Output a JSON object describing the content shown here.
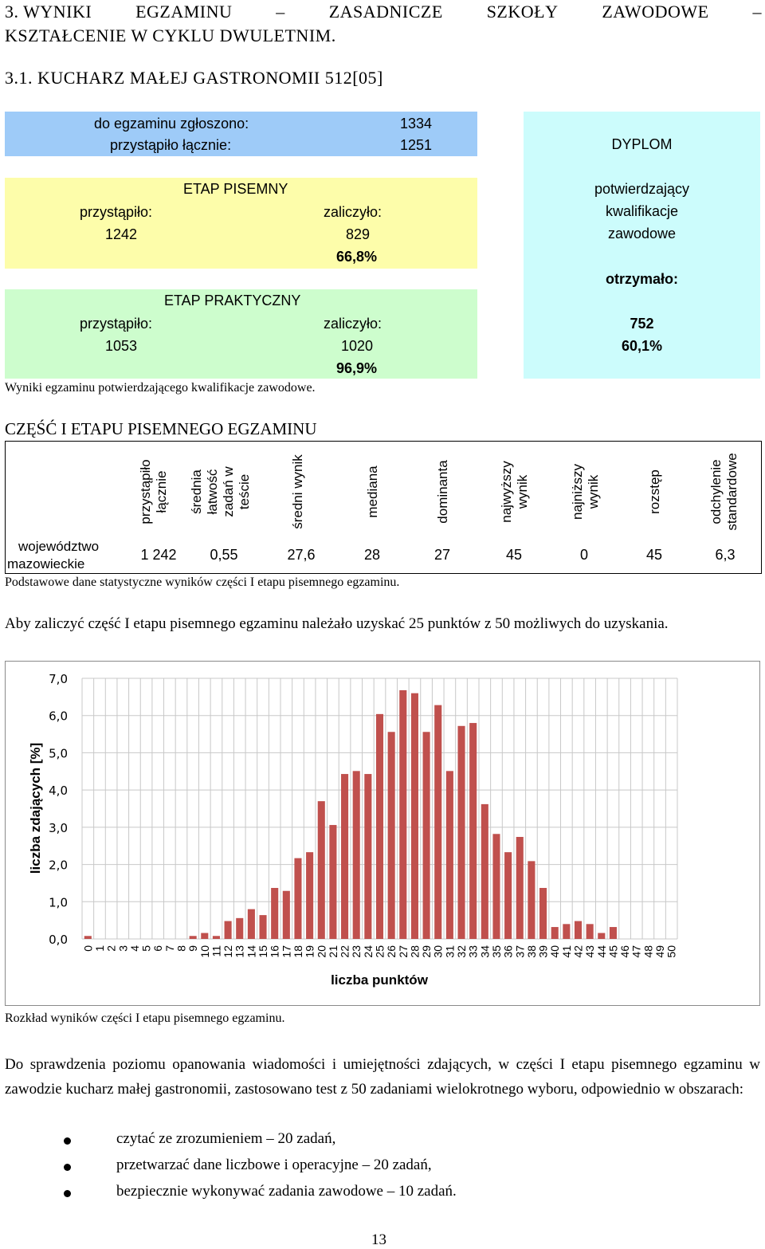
{
  "heading": {
    "line1": "3. WYNIKI EGZAMINU – ZASADNICZE SZKOŁY ZAWODOWE –",
    "line2": "KSZTAŁCENIE W CYKLU DWULETNIM.",
    "subheading": "3.1. KUCHARZ MAŁEJ GASTRONOMII 512[05]"
  },
  "summary": {
    "registered_label": "do egzaminu zgłoszono:",
    "registered_value": "1334",
    "attended_label": "przystąpiło łącznie:",
    "attended_value": "1251",
    "written": {
      "title": "ETAP PISEMNY",
      "attended_label": "przystąpiło:",
      "attended_value": "1242",
      "passed_label": "zaliczyło:",
      "passed_value": "829",
      "passed_pct": "66,8%"
    },
    "practical": {
      "title": "ETAP PRAKTYCZNY",
      "attended_label": "przystąpiło:",
      "attended_value": "1053",
      "passed_label": "zaliczyło:",
      "passed_value": "1020",
      "passed_pct": "96,9%"
    },
    "diploma": {
      "title": "DYPLOM",
      "line1": "potwierdzający",
      "line2": "kwalifikacje",
      "line3": "zawodowe",
      "received_label": "otrzymało:",
      "received_value": "752",
      "received_pct": "60,1%"
    },
    "caption": "Wyniki egzaminu potwierdzającego kwalifikacje zawodowe."
  },
  "part1": {
    "title": "CZĘŚĆ I ETAPU PISEMNEGO EGZAMINU",
    "headers": [
      "przystąpiło\nłącznie",
      "średnia\nłatwość\nzadań w\nteście",
      "średni wynik",
      "mediana",
      "dominanta",
      "najwyższy\nwynik",
      "najniższy\nwynik",
      "rozstęp",
      "odchylenie\nstandardowe"
    ],
    "row_label_1": "województwo",
    "row_label_2": "mazowieckie",
    "values": [
      "1 242",
      "0,55",
      "27,6",
      "28",
      "27",
      "45",
      "0",
      "45",
      "6,3"
    ],
    "caption": "Podstawowe dane statystyczne wyników części I etapu pisemnego egzaminu.",
    "pass_note": "Aby zaliczyć część I etapu pisemnego egzaminu należało uzyskać 25 punktów z 50 możliwych do uzyskania."
  },
  "chart_data": {
    "type": "bar",
    "xlabel": "liczba punktów",
    "ylabel": "liczba zdających [%]",
    "ylim": [
      0,
      7
    ],
    "yticks": [
      "0,0",
      "1,0",
      "2,0",
      "3,0",
      "4,0",
      "5,0",
      "6,0",
      "7,0"
    ],
    "grid": true,
    "color": "#c0504d",
    "categories": [
      "0",
      "1",
      "2",
      "3",
      "4",
      "5",
      "6",
      "7",
      "8",
      "9",
      "10",
      "11",
      "12",
      "13",
      "14",
      "15",
      "16",
      "17",
      "18",
      "19",
      "20",
      "21",
      "22",
      "23",
      "24",
      "25",
      "26",
      "27",
      "28",
      "29",
      "30",
      "31",
      "32",
      "33",
      "34",
      "35",
      "36",
      "37",
      "38",
      "39",
      "40",
      "41",
      "42",
      "43",
      "44",
      "45",
      "46",
      "47",
      "48",
      "49",
      "50"
    ],
    "values": [
      0.08,
      0,
      0,
      0,
      0,
      0,
      0,
      0,
      0,
      0.08,
      0.16,
      0.08,
      0.48,
      0.56,
      0.8,
      0.64,
      1.37,
      1.29,
      2.17,
      2.33,
      3.7,
      3.06,
      4.43,
      4.51,
      4.43,
      6.04,
      5.56,
      6.68,
      6.6,
      5.56,
      6.28,
      4.51,
      5.72,
      5.8,
      3.62,
      2.82,
      2.33,
      2.74,
      2.09,
      1.37,
      0.32,
      0.4,
      0.48,
      0.4,
      0.16,
      0.32,
      0,
      0,
      0,
      0,
      0
    ]
  },
  "chart_caption": "Rozkład wyników części I etapu pisemnego egzaminu.",
  "body": {
    "paragraph": "Do sprawdzenia poziomu opanowania wiadomości i umiejętności zdających, w części I etapu pisemnego egzaminu w zawodzie kucharz małej gastronomii, zastosowano test z 50 zadaniami wielokrotnego wyboru, odpowiednio w obszarach:",
    "bullets": [
      "czytać ze zrozumieniem – 20 zadań,",
      "przetwarzać dane liczbowe i operacyjne – 20 zadań,",
      "bezpiecznie wykonywać zadania zawodowe – 10 zadań."
    ]
  },
  "page_number": "13"
}
